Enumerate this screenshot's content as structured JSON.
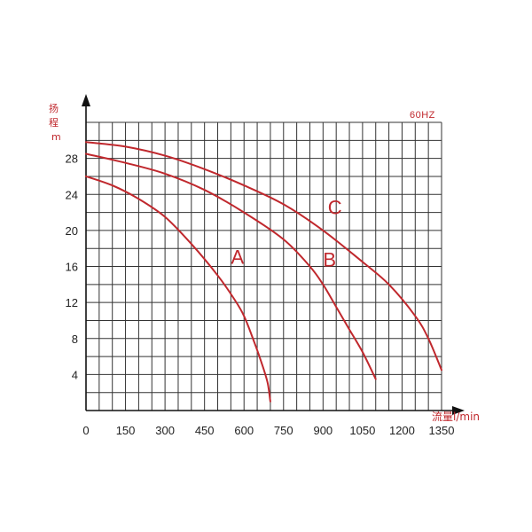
{
  "chart_data": {
    "type": "line",
    "frequency_label": "60HZ",
    "ylabel": [
      "扬",
      "程",
      "m"
    ],
    "xlabel": "流量l/min",
    "xlim": [
      0,
      1350
    ],
    "ylim": [
      0,
      32
    ],
    "x_ticks": [
      "0",
      "150",
      "300",
      "450",
      "600",
      "750",
      "900",
      "1050",
      "1200",
      "1350"
    ],
    "y_ticks": [
      "4",
      "8",
      "12",
      "16",
      "20",
      "24",
      "28"
    ],
    "grid": true,
    "colors": {
      "curve": "#c0282d",
      "grid": "#333333",
      "axis": "#111111"
    },
    "series": [
      {
        "name": "A",
        "x": [
          0,
          100,
          200,
          300,
          400,
          500,
          560,
          600,
          640,
          670,
          690,
          700
        ],
        "y": [
          26,
          25,
          23.5,
          21.5,
          18.5,
          15,
          12.5,
          10.5,
          7.5,
          5,
          3,
          1
        ]
      },
      {
        "name": "B",
        "x": [
          0,
          150,
          300,
          450,
          600,
          750,
          850,
          900,
          950,
          1000,
          1050,
          1100
        ],
        "y": [
          28.5,
          27.5,
          26.3,
          24.5,
          22,
          19,
          16,
          14,
          11.5,
          9,
          6.5,
          3.5
        ]
      },
      {
        "name": "C",
        "x": [
          0,
          150,
          300,
          450,
          600,
          750,
          900,
          1050,
          1150,
          1250,
          1300,
          1350
        ],
        "y": [
          29.8,
          29.3,
          28.3,
          26.8,
          25,
          22.9,
          20,
          16.5,
          14,
          10.5,
          8,
          4.5
        ]
      }
    ]
  }
}
